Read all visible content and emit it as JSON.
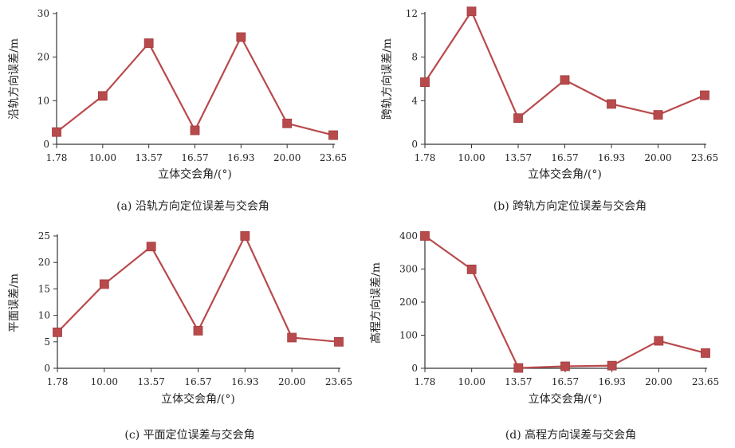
{
  "color": "#b94a4c",
  "chart_data": [
    {
      "id": "a",
      "type": "line",
      "categories": [
        "1.78",
        "10.00",
        "13.57",
        "16.57",
        "16.93",
        "20.00",
        "23.65"
      ],
      "values": [
        2.8,
        11.1,
        23.2,
        3.2,
        24.6,
        4.8,
        2.1
      ],
      "ylabel": "沿轨方向误差/m",
      "xlabel": "立体交会角/(°)",
      "ylim": [
        0,
        30
      ],
      "yticks": [
        "0",
        "10",
        "20",
        "30"
      ],
      "caption": "(a) 沿轨方向定位误差与交会角"
    },
    {
      "id": "b",
      "type": "line",
      "categories": [
        "1.78",
        "10.00",
        "13.57",
        "16.57",
        "16.93",
        "20.00",
        "23.65"
      ],
      "values": [
        5.7,
        12.2,
        2.4,
        5.9,
        3.7,
        2.7,
        4.5
      ],
      "ylabel": "跨轨方向误差/m",
      "xlabel": "立体交会角/(°)",
      "ylim": [
        0,
        12
      ],
      "yticks": [
        "0",
        "4",
        "8",
        "12"
      ],
      "caption": "(b) 跨轨方向定位误差与交会角"
    },
    {
      "id": "c",
      "type": "line",
      "categories": [
        "1.78",
        "10.00",
        "13.57",
        "16.57",
        "16.93",
        "20.00",
        "23.65"
      ],
      "values": [
        6.8,
        15.9,
        23.0,
        7.1,
        25.0,
        5.8,
        5.0
      ],
      "ylabel": "平面误差/m",
      "xlabel": "立体交会角/(°)",
      "ylim": [
        0,
        25
      ],
      "yticks": [
        "0",
        "5",
        "10",
        "15",
        "20",
        "25"
      ],
      "caption": "(c) 平面定位误差与交会角"
    },
    {
      "id": "d",
      "type": "line",
      "categories": [
        "1.78",
        "10.00",
        "13.57",
        "16.57",
        "16.93",
        "20.00",
        "23.65"
      ],
      "values": [
        400,
        299,
        1,
        6,
        8,
        83,
        46
      ],
      "ylabel": "高程方向误差/m",
      "xlabel": "立体交会角/(°)",
      "ylim": [
        0,
        400
      ],
      "yticks": [
        "0",
        "100",
        "200",
        "300",
        "400"
      ],
      "caption": "(d) 高程方向误差与交会角"
    }
  ]
}
